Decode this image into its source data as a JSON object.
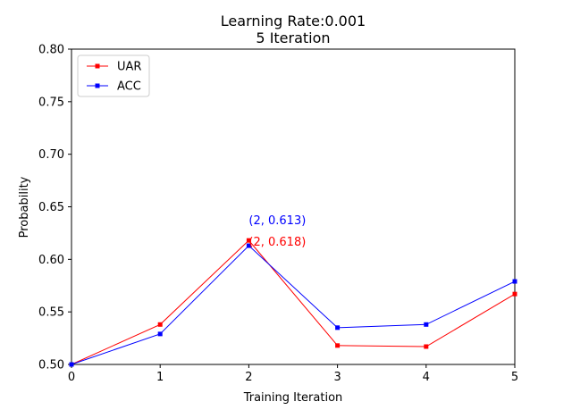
{
  "chart_data": {
    "type": "line",
    "title_lines": [
      "Learning Rate:0.001",
      "5 Iteration"
    ],
    "xlabel": "Training Iteration",
    "ylabel": "Probability",
    "xlim": [
      0,
      5
    ],
    "ylim": [
      0.5,
      0.8
    ],
    "x_ticks": [
      "0",
      "1",
      "2",
      "3",
      "4",
      "5"
    ],
    "y_ticks": [
      "0.50",
      "0.55",
      "0.60",
      "0.65",
      "0.70",
      "0.75",
      "0.80"
    ],
    "grid": false,
    "legend_position": "top-left",
    "x": [
      0,
      1,
      2,
      3,
      4,
      5
    ],
    "series": [
      {
        "name": "UAR",
        "color": "#ff0000",
        "values": [
          0.5,
          0.538,
          0.618,
          0.518,
          0.517,
          0.567
        ]
      },
      {
        "name": "ACC",
        "color": "#0000ff",
        "values": [
          0.5,
          0.529,
          0.613,
          0.535,
          0.538,
          0.579
        ]
      }
    ],
    "annotations": [
      {
        "text": "(2, 0.613)",
        "x": 2,
        "y": 0.613,
        "color": "#0000ff"
      },
      {
        "text": "(2, 0.618)",
        "x": 2,
        "y": 0.618,
        "color": "#ff0000"
      }
    ]
  }
}
